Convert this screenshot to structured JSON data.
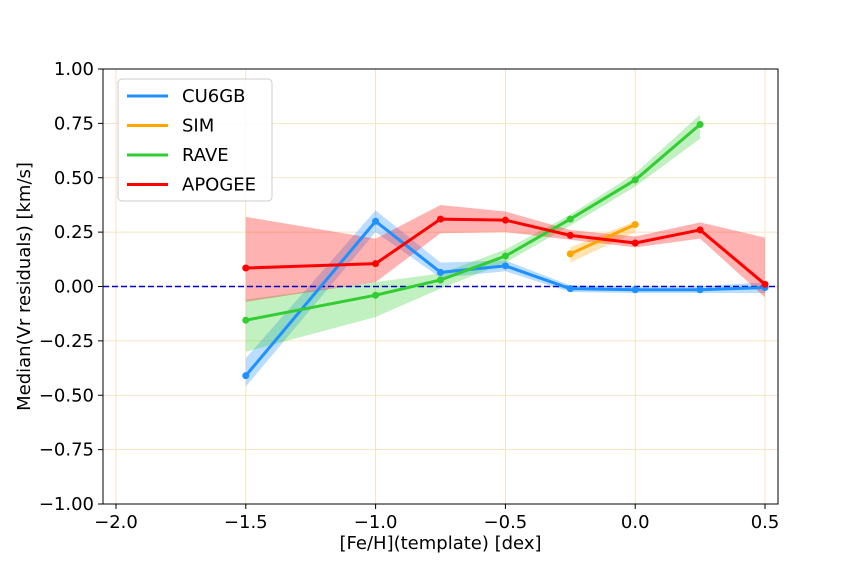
{
  "chart_data": {
    "type": "line",
    "title": "",
    "xlabel": "[Fe/H](template) [dex]",
    "ylabel": "Median(Vr residuals) [km/s]",
    "xlim": [
      -2.05,
      0.55
    ],
    "ylim": [
      -1.0,
      1.0
    ],
    "grid": true,
    "grid_color": "#f5deb3",
    "legend_position": "top-left",
    "x_ticks": [
      {
        "value": -2.0,
        "label": "−2.0"
      },
      {
        "value": -1.5,
        "label": "−1.5"
      },
      {
        "value": -1.0,
        "label": "−1.0"
      },
      {
        "value": -0.5,
        "label": "−0.5"
      },
      {
        "value": 0.0,
        "label": "0.0"
      },
      {
        "value": 0.5,
        "label": "0.5"
      }
    ],
    "y_ticks": [
      {
        "value": -1.0,
        "label": "−1.00"
      },
      {
        "value": -0.75,
        "label": "−0.75"
      },
      {
        "value": -0.5,
        "label": "−0.50"
      },
      {
        "value": -0.25,
        "label": "−0.25"
      },
      {
        "value": 0.0,
        "label": "0.00"
      },
      {
        "value": 0.25,
        "label": "0.25"
      },
      {
        "value": 0.5,
        "label": "0.50"
      },
      {
        "value": 0.75,
        "label": "0.75"
      },
      {
        "value": 1.0,
        "label": "1.00"
      }
    ],
    "reference_line": {
      "y": 0.0,
      "color": "#0000cc",
      "style": "dashed"
    },
    "series": [
      {
        "name": "CU6GB",
        "color": "#1e90ff",
        "x": [
          -1.5,
          -1.0,
          -0.75,
          -0.5,
          -0.25,
          0.0,
          0.25,
          0.5
        ],
        "y": [
          -0.41,
          0.3,
          0.065,
          0.095,
          -0.01,
          -0.015,
          -0.015,
          -0.005
        ],
        "lower": [
          -0.46,
          0.25,
          0.04,
          0.07,
          -0.025,
          -0.03,
          -0.03,
          -0.03
        ],
        "upper": [
          -0.33,
          0.35,
          0.11,
          0.12,
          0.005,
          0.0,
          0.0,
          0.02
        ]
      },
      {
        "name": "SIM",
        "color": "#ffa500",
        "x": [
          -0.25,
          0.0
        ],
        "y": [
          0.15,
          0.285
        ],
        "lower": [
          0.11,
          0.25
        ],
        "upper": [
          0.18,
          0.3
        ]
      },
      {
        "name": "RAVE",
        "color": "#32cd32",
        "x": [
          -1.5,
          -1.0,
          -0.75,
          -0.5,
          -0.25,
          0.0,
          0.25
        ],
        "y": [
          -0.155,
          -0.04,
          0.03,
          0.14,
          0.31,
          0.49,
          0.745
        ],
        "lower": [
          -0.3,
          -0.14,
          -0.01,
          0.11,
          0.28,
          0.46,
          0.68
        ],
        "upper": [
          -0.06,
          0.02,
          0.06,
          0.17,
          0.33,
          0.52,
          0.79
        ]
      },
      {
        "name": "APOGEE",
        "color": "#ff0000",
        "x": [
          -1.5,
          -1.0,
          -0.75,
          -0.5,
          -0.25,
          0.0,
          0.25,
          0.5
        ],
        "y": [
          0.085,
          0.105,
          0.31,
          0.305,
          0.235,
          0.2,
          0.26,
          0.01
        ],
        "lower": [
          -0.07,
          0.02,
          0.245,
          0.25,
          0.215,
          0.18,
          0.22,
          -0.05
        ],
        "upper": [
          0.32,
          0.22,
          0.375,
          0.345,
          0.26,
          0.23,
          0.295,
          0.225
        ]
      }
    ]
  }
}
